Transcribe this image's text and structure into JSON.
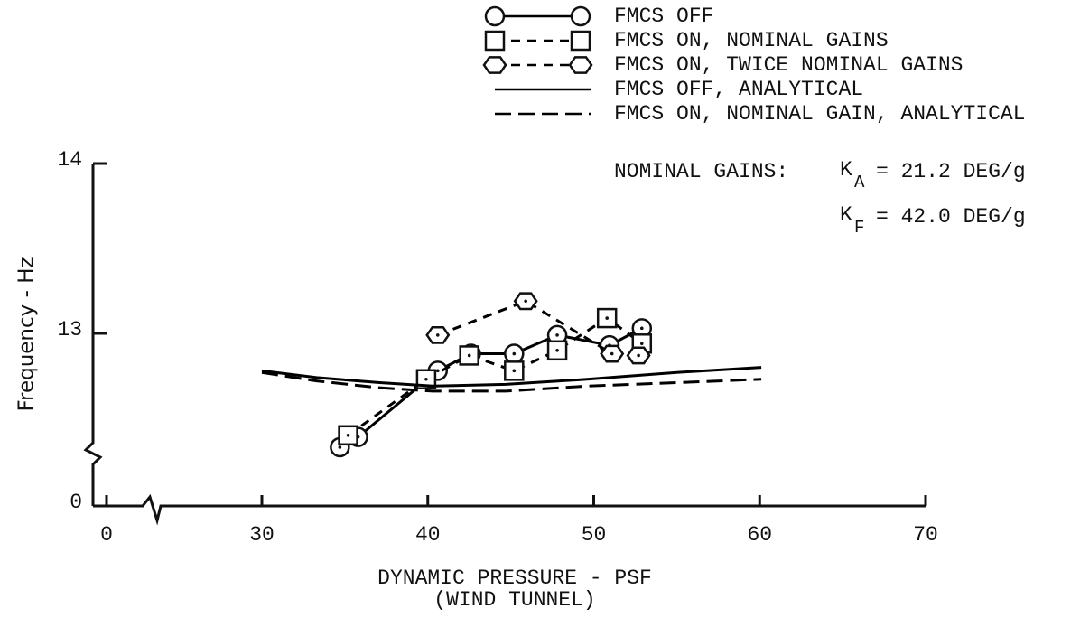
{
  "chart_data": {
    "type": "line",
    "xlabel": "DYNAMIC PRESSURE - PSF",
    "xlabel2": "(WIND TUNNEL)",
    "ylabel": "Frequency - Hz",
    "xlim": [
      0,
      70
    ],
    "xticks": [
      0,
      30,
      40,
      50,
      60,
      70
    ],
    "ylim": [
      0,
      14
    ],
    "yticks": [
      0,
      13,
      14
    ],
    "axis_break": true,
    "series": [
      {
        "name": "FMCS OFF",
        "color": "#000000",
        "marker": "circle",
        "dash": "solid",
        "x": [
          34.7,
          35.8,
          40.6,
          42.6,
          45.2,
          47.8,
          50.95,
          52.9
        ],
        "values": [
          12.33,
          12.39,
          12.78,
          12.88,
          12.88,
          12.99,
          12.93,
          13.03
        ]
      },
      {
        "name": "FMCS ON, NOMINAL GAINS",
        "color": "#000000",
        "marker": "square",
        "dash": "dashed",
        "x": [
          35.2,
          39.9,
          42.5,
          45.2,
          47.8,
          50.8,
          52.9
        ],
        "values": [
          12.4,
          12.73,
          12.87,
          12.78,
          12.9,
          13.09,
          12.94
        ]
      },
      {
        "name": "FMCS ON, TWICE NOMINAL GAINS",
        "color": "#000000",
        "marker": "hexagon",
        "dash": "dashed",
        "x": [
          40.6,
          45.9,
          51.1,
          52.7
        ],
        "values": [
          12.99,
          13.19,
          12.88,
          12.87
        ]
      },
      {
        "name": "FMCS OFF, ANALYTICAL",
        "color": "#000000",
        "marker": "none",
        "dash": "solid",
        "x": [
          30,
          33.3,
          37.1,
          40.3,
          44.7,
          49.6,
          55,
          60.1
        ],
        "values": [
          12.78,
          12.74,
          12.71,
          12.69,
          12.7,
          12.73,
          12.77,
          12.8
        ]
      },
      {
        "name": "FMCS ON, NOMINAL GAIN, ANALYTICAL",
        "color": "#000000",
        "marker": "none",
        "dash": "longdash",
        "x": [
          30,
          33.3,
          37.1,
          40.3,
          44.7,
          49.6,
          55,
          60.1
        ],
        "values": [
          12.77,
          12.72,
          12.68,
          12.66,
          12.66,
          12.69,
          12.71,
          12.73
        ]
      }
    ],
    "annotation": {
      "label": "NOMINAL GAINS:",
      "ka": {
        "symbol": "K",
        "sub": "A",
        "text": "= 21.2 DEG/g"
      },
      "kf": {
        "symbol": "K",
        "sub": "F",
        "text": "= 42.0 DEG/g"
      }
    }
  }
}
